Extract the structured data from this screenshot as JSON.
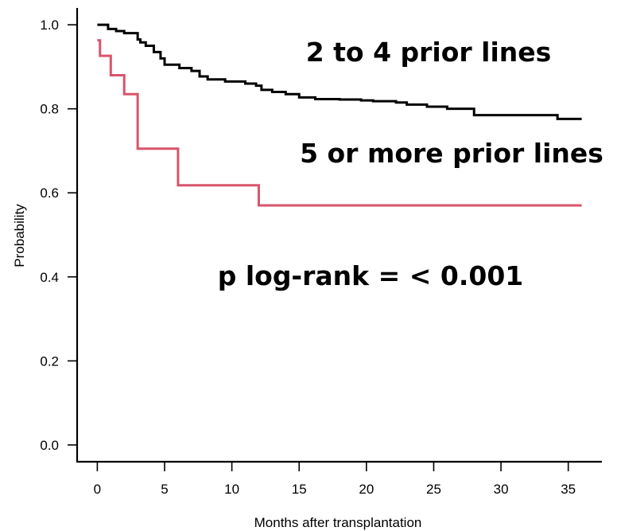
{
  "chart_data": {
    "type": "line",
    "title": "",
    "xlabel": "Months after transplantation",
    "ylabel": "Probability",
    "xlim": [
      -1.5,
      37.5
    ],
    "ylim": [
      -0.04,
      1.04
    ],
    "xticks": [
      0,
      5,
      10,
      15,
      20,
      25,
      30,
      35
    ],
    "yticks": [
      "0.0",
      "0.2",
      "0.4",
      "0.6",
      "0.8",
      "1.0"
    ],
    "grid": false,
    "series": [
      {
        "name": "2 to 4 prior lines",
        "color": "#000000",
        "step": true,
        "points": [
          [
            0,
            1.0
          ],
          [
            0.8,
            0.99
          ],
          [
            1.4,
            0.985
          ],
          [
            2.0,
            0.98
          ],
          [
            3.0,
            0.965
          ],
          [
            3.2,
            0.958
          ],
          [
            3.6,
            0.95
          ],
          [
            4.2,
            0.935
          ],
          [
            4.7,
            0.92
          ],
          [
            5.0,
            0.905
          ],
          [
            6.1,
            0.897
          ],
          [
            7.0,
            0.89
          ],
          [
            7.6,
            0.877
          ],
          [
            8.2,
            0.87
          ],
          [
            9.5,
            0.865
          ],
          [
            11.0,
            0.86
          ],
          [
            11.8,
            0.855
          ],
          [
            12.2,
            0.845
          ],
          [
            13.0,
            0.84
          ],
          [
            14.0,
            0.835
          ],
          [
            15.0,
            0.827
          ],
          [
            16.2,
            0.823
          ],
          [
            18.0,
            0.822
          ],
          [
            19.6,
            0.82
          ],
          [
            20.5,
            0.818
          ],
          [
            22.2,
            0.815
          ],
          [
            23.0,
            0.81
          ],
          [
            24.5,
            0.805
          ],
          [
            26.0,
            0.8
          ],
          [
            28.0,
            0.785
          ],
          [
            34.2,
            0.776
          ],
          [
            36.0,
            0.776
          ]
        ]
      },
      {
        "name": "5 or more prior lines",
        "color": "#d9546b",
        "step": true,
        "points": [
          [
            0,
            0.963
          ],
          [
            0.2,
            0.926
          ],
          [
            1.0,
            0.88
          ],
          [
            2.0,
            0.835
          ],
          [
            3.0,
            0.705
          ],
          [
            6.0,
            0.618
          ],
          [
            12.0,
            0.57
          ],
          [
            36.0,
            0.57
          ]
        ]
      }
    ],
    "annotations": {
      "line1": "2 to 4 prior lines",
      "line2": "5 or more prior lines",
      "pvalue": "p log-rank = < 0.001"
    }
  }
}
